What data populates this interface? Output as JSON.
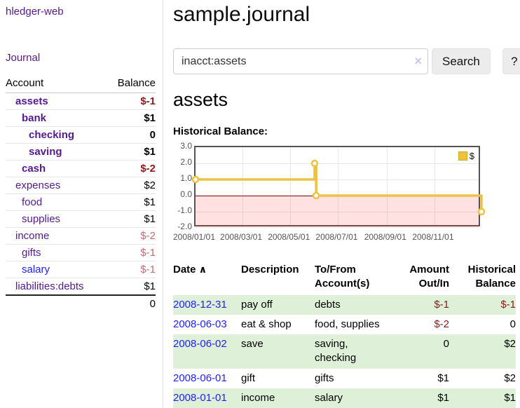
{
  "sidebar": {
    "brand": "hledger-web",
    "nav_journal": "Journal",
    "accounts_table": {
      "headers": [
        "Account",
        "Balance"
      ],
      "rows": [
        {
          "account": "assets",
          "level": 1,
          "bold": true,
          "color": "purple",
          "balance": "$-1",
          "neg": "strong"
        },
        {
          "account": "bank",
          "level": 2,
          "bold": true,
          "color": "purple",
          "balance": "$1",
          "neg": null
        },
        {
          "account": "checking",
          "level": 3,
          "bold": true,
          "color": "purple",
          "balance": "0",
          "neg": null
        },
        {
          "account": "saving",
          "level": 3,
          "bold": true,
          "color": "purple",
          "balance": "$1",
          "neg": null
        },
        {
          "account": "cash",
          "level": 2,
          "bold": true,
          "color": "purple",
          "balance": "$-2",
          "neg": "strong"
        },
        {
          "account": "expenses",
          "level": 1,
          "bold": false,
          "color": "purple",
          "balance": "$2",
          "neg": null
        },
        {
          "account": "food",
          "level": 2,
          "bold": false,
          "color": "purple",
          "balance": "$1",
          "neg": null
        },
        {
          "account": "supplies",
          "level": 2,
          "bold": false,
          "color": "purple",
          "balance": "$1",
          "neg": null
        },
        {
          "account": "income",
          "level": 1,
          "bold": false,
          "color": "purple",
          "balance": "$-2",
          "neg": "soft"
        },
        {
          "account": "gifts",
          "level": 2,
          "bold": false,
          "color": "purple",
          "balance": "$-1",
          "neg": "soft"
        },
        {
          "account": "salary",
          "level": 2,
          "bold": false,
          "color": "blue",
          "balance": "$-1",
          "neg": "soft"
        },
        {
          "account": "liabilities:debts",
          "level": 1,
          "bold": false,
          "color": "purple",
          "balance": "$1",
          "neg": null
        }
      ],
      "total": "0"
    }
  },
  "header": {
    "title": "sample.journal"
  },
  "search": {
    "value": "inacct:assets",
    "search_label": "Search",
    "help_label": "?"
  },
  "icons": {
    "clear": "×",
    "sort_asc": "∧"
  },
  "account_page": {
    "heading": "assets",
    "chart_label": "Historical Balance:"
  },
  "chart_data": {
    "type": "line",
    "title": "Historical Balance:",
    "series": [
      {
        "name": "$",
        "color": "#edc240",
        "step": true,
        "points": [
          [
            "2008-01-01",
            1
          ],
          [
            "2008-06-01",
            2
          ],
          [
            "2008-06-03",
            0
          ],
          [
            "2008-12-31",
            -1
          ]
        ]
      }
    ],
    "x_range": [
      "2008-01-01",
      "2008-12-31"
    ],
    "x_ticks": [
      "2008/01/01",
      "2008/03/01",
      "2008/05/01",
      "2008/07/01",
      "2008/09/01",
      "2008/11/01"
    ],
    "y_ticks": [
      "3.0",
      "2.0",
      "1.0",
      "0.0",
      "-1.0",
      "-2.0"
    ],
    "ylim": [
      -2,
      3
    ],
    "grid": true,
    "legend_position": "top-right",
    "negative_region": true,
    "zero_line_color": "#800000"
  },
  "register_table": {
    "headers": [
      {
        "lines": [
          "Date"
        ],
        "sort": true,
        "align": "left"
      },
      {
        "lines": [
          "Description"
        ],
        "align": "left"
      },
      {
        "lines": [
          "To/From",
          "Account(s)"
        ],
        "align": "left"
      },
      {
        "lines": [
          "Amount",
          "Out/In"
        ],
        "align": "right"
      },
      {
        "lines": [
          "Historical",
          "Balance"
        ],
        "align": "right"
      }
    ],
    "rows": [
      {
        "date": "2008-12-31",
        "description": "pay off",
        "accounts_lines": [
          "debts"
        ],
        "amount": "$-1",
        "amount_neg": true,
        "balance": "$-1",
        "balance_neg": true,
        "shaded": true
      },
      {
        "date": "2008-06-03",
        "description": "eat & shop",
        "accounts_lines": [
          "food, supplies"
        ],
        "amount": "$-2",
        "amount_neg": true,
        "balance": "0",
        "balance_neg": false,
        "shaded": false
      },
      {
        "date": "2008-06-02",
        "description": "save",
        "accounts_lines": [
          "saving,",
          "checking"
        ],
        "amount": "0",
        "amount_neg": false,
        "balance": "$2",
        "balance_neg": false,
        "shaded": true
      },
      {
        "date": "2008-06-01",
        "description": "gift",
        "accounts_lines": [
          "gifts"
        ],
        "amount": "$1",
        "amount_neg": false,
        "balance": "$2",
        "balance_neg": false,
        "shaded": false
      },
      {
        "date": "2008-01-01",
        "description": "income",
        "accounts_lines": [
          "salary"
        ],
        "amount": "$1",
        "amount_neg": false,
        "balance": "$1",
        "balance_neg": false,
        "shaded": true
      }
    ]
  },
  "colors": {
    "link_purple": "#551a8b",
    "link_blue": "#2222ee",
    "negative_strong": "#8b1a1a",
    "negative_soft": "#bb6f74",
    "row_stripe_green": "#dff0d8",
    "chart_series_gold": "#edc240",
    "chart_zero_line": "#800000",
    "chart_border": "#545454"
  }
}
